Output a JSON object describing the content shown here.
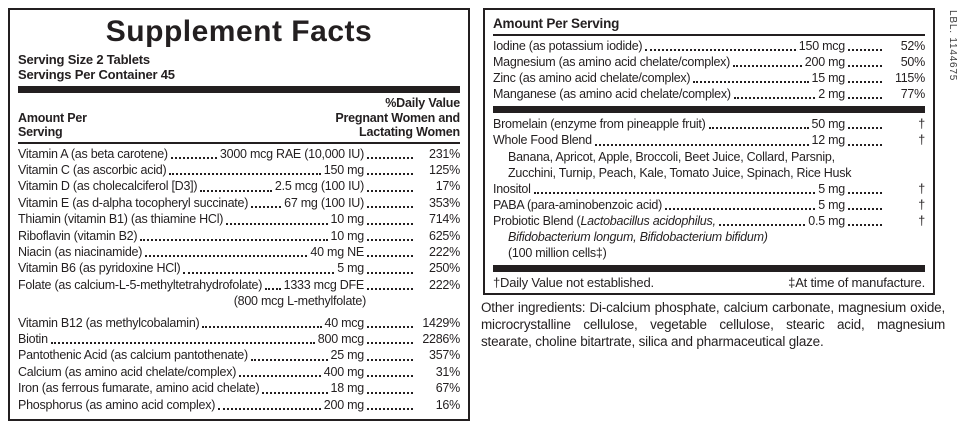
{
  "colors": {
    "ink": "#231f20",
    "background": "#ffffff"
  },
  "label_code": "LBL. 1144675",
  "left_panel": {
    "title": "Supplement Facts",
    "serving_size": "Serving Size 2 Tablets",
    "servings_per_container": "Servings Per Container 45",
    "col_header_left_lines": [
      "Amount Per",
      "Serving"
    ],
    "col_header_right_lines": [
      "%Daily Value",
      "Pregnant Women and",
      "Lactating Women"
    ],
    "rows": [
      {
        "name": "Vitamin A (as beta carotene)",
        "amount": "3000 mcg RAE (10,000 IU)",
        "dv": "231%"
      },
      {
        "name": "Vitamin C (as ascorbic acid)",
        "amount": "150 mg",
        "dv": "125%"
      },
      {
        "name": "Vitamin D (as cholecalciferol [D3])",
        "amount": "2.5 mcg (100 IU)",
        "dv": "17%"
      },
      {
        "name": "Vitamin E (as d-alpha tocopheryl succinate)",
        "amount": "67 mg (100 IU)",
        "dv": "353%"
      },
      {
        "name": "Thiamin (vitamin B1) (as thiamine HCl)",
        "amount": "10 mg",
        "dv": "714%"
      },
      {
        "name": "Riboflavin (vitamin B2)",
        "amount": "10 mg",
        "dv": "625%"
      },
      {
        "name": "Niacin (as niacinamide)",
        "amount": "40 mg NE",
        "dv": "222%"
      },
      {
        "name": "Vitamin B6 (as pyridoxine HCl)",
        "amount": "5 mg",
        "dv": "250%"
      },
      {
        "name": "Folate (as calcium-L-5-methyltetrahydrofolate)",
        "amount": "1333 mcg DFE",
        "dv": "222%",
        "sub_lines": [
          {
            "text": "(800 mcg L-methylfolate)",
            "align": "amount"
          }
        ],
        "gap_after": true
      },
      {
        "name": "Vitamin B12 (as methylcobalamin)",
        "amount": "40 mcg",
        "dv": "1429%"
      },
      {
        "name": "Biotin",
        "amount": "800 mcg",
        "dv": "2286%"
      },
      {
        "name": "Pantothenic Acid (as calcium pantothenate)",
        "amount": "25 mg",
        "dv": "357%"
      },
      {
        "name": "Calcium (as amino acid chelate/complex)",
        "amount": "400 mg",
        "dv": "31%"
      },
      {
        "name": "Iron (as ferrous fumarate, amino acid chelate)",
        "amount": "18 mg",
        "dv": "67%"
      },
      {
        "name": "Phosphorus (as amino acid complex)",
        "amount": "200 mg",
        "dv": "16%"
      }
    ]
  },
  "right_panel": {
    "header": "Amount Per Serving",
    "mineral_rows": [
      {
        "name": "Iodine (as potassium iodide)",
        "amount": "150 mcg",
        "dv": "52%"
      },
      {
        "name": "Magnesium (as amino acid chelate/complex)",
        "amount": "200 mg",
        "dv": "50%"
      },
      {
        "name": "Zinc (as amino acid chelate/complex)",
        "amount": "15 mg",
        "dv": "115%"
      },
      {
        "name": "Manganese (as amino acid chelate/complex)",
        "amount": "2 mg",
        "dv": "77%"
      }
    ],
    "blend_rows": [
      {
        "name": "Bromelain (enzyme from pineapple fruit)",
        "amount": "50 mg",
        "dv": "†"
      },
      {
        "name": "Whole Food Blend",
        "amount": "12 mg",
        "dv": "†",
        "sub_lines": [
          {
            "text": "Banana, Apricot, Apple, Broccoli, Beet Juice, Collard, Parsnip,",
            "align": "indent"
          },
          {
            "text": "Zucchini, Turnip, Peach, Kale, Tomato Juice, Spinach, Rice Husk",
            "align": "indent"
          }
        ]
      },
      {
        "name": "Inositol",
        "amount": "5 mg",
        "dv": "†"
      },
      {
        "name": "PABA (para-aminobenzoic acid)",
        "amount": "5 mg",
        "dv": "†"
      },
      {
        "name_parts": [
          {
            "text": "Probiotic Blend ("
          },
          {
            "text": "Lactobacillus acidophilus,",
            "italic": true
          }
        ],
        "amount": "0.5 mg",
        "dv": "†",
        "sub_lines": [
          {
            "text": "Bifidobacterium longum, Bifidobacterium bifidum)",
            "align": "indent",
            "italic": true
          },
          {
            "text": "(100 million cells‡)",
            "align": "indent"
          }
        ]
      }
    ],
    "footnote_left": "†Daily Value not established.",
    "footnote_right": "‡At time of manufacture."
  },
  "other_ingredients": "Other ingredients: Di-calcium phosphate, calcium carbonate, magnesium oxide, microcrystalline cellulose, vegetable cellulose, stearic acid, magnesium stearate, choline bitartrate, silica and pharmaceutical glaze."
}
